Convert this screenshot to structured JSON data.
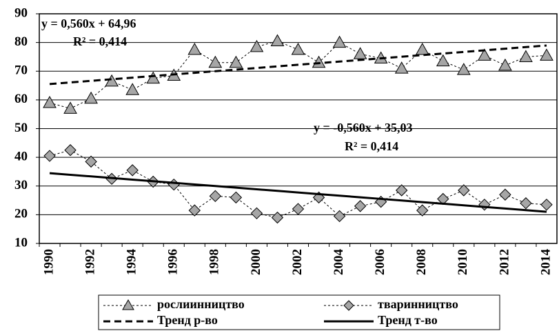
{
  "chart_data": {
    "type": "line",
    "categories": [
      "1990",
      null,
      "1992",
      null,
      "1994",
      null,
      "1996",
      null,
      "1998",
      null,
      "2000",
      null,
      "2002",
      null,
      "2004",
      null,
      "2006",
      null,
      "2008",
      null,
      "2010",
      null,
      "2012",
      null,
      "2014"
    ],
    "series": [
      {
        "name": "рослиинництво",
        "color": "#a6a6a6",
        "marker": "triangle",
        "values": [
          59,
          57,
          60.5,
          66.5,
          63.5,
          67.5,
          68.5,
          77.5,
          73,
          73,
          78.5,
          80.5,
          77.5,
          73,
          80,
          76,
          74.5,
          71,
          77.5,
          73.5,
          70.5,
          75.5,
          72,
          75,
          75.5
        ]
      },
      {
        "name": "тваринництво",
        "color": "#a6a6a6",
        "marker": "diamond",
        "values": [
          40.5,
          42.5,
          38.5,
          32.5,
          35.5,
          31.5,
          30.5,
          21.5,
          26.5,
          26,
          20.5,
          19,
          22,
          26,
          19.5,
          23,
          24.5,
          28.5,
          21.5,
          25.5,
          28.5,
          23.5,
          27,
          24,
          23.5
        ]
      },
      {
        "name": "Тренд р-во",
        "color": "#000000",
        "dash": true,
        "values": [
          65.52,
          66.08,
          66.64,
          67.2,
          67.76,
          68.32,
          68.88,
          69.44,
          70,
          70.56,
          71.12,
          71.68,
          72.24,
          72.8,
          73.36,
          73.92,
          74.48,
          75.04,
          75.6,
          76.16,
          76.72,
          77.28,
          77.84,
          78.4,
          78.96
        ]
      },
      {
        "name": "Тренд т-во",
        "color": "#000000",
        "dash": false,
        "values": [
          34.47,
          33.91,
          33.35,
          32.79,
          32.23,
          31.67,
          31.11,
          30.55,
          29.99,
          29.43,
          28.87,
          28.31,
          27.75,
          27.19,
          26.63,
          26.07,
          25.51,
          24.95,
          24.39,
          23.83,
          23.27,
          22.71,
          22.15,
          21.59,
          21.03
        ]
      }
    ],
    "annotations": [
      "y = 0,560x + 64,96",
      "R² = 0,414",
      "y = -0,560x + 35,03",
      "R² = 0,414"
    ],
    "ylim": [
      10,
      90
    ],
    "yticks": [
      10,
      20,
      30,
      40,
      50,
      60,
      70,
      80,
      90
    ],
    "grid": true,
    "legend": "bottom"
  }
}
